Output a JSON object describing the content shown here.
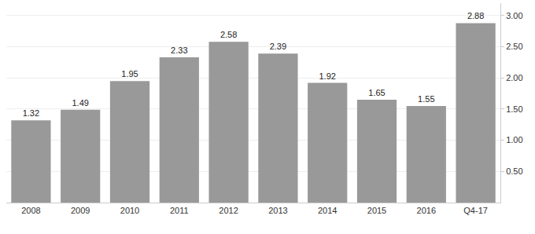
{
  "chart_data": {
    "type": "bar",
    "categories": [
      "2008",
      "2009",
      "2010",
      "2011",
      "2012",
      "2013",
      "2014",
      "2015",
      "2016",
      "Q4-17"
    ],
    "values": [
      1.32,
      1.49,
      1.95,
      2.33,
      2.58,
      2.39,
      1.92,
      1.65,
      1.55,
      2.88
    ],
    "color": "#999999",
    "ylim": [
      0,
      3.2
    ],
    "yticks": [
      {
        "value": 0.5,
        "label": "0.50"
      },
      {
        "value": 1,
        "label": "1.00"
      },
      {
        "value": 1.5,
        "label": "1.50"
      },
      {
        "value": 2,
        "label": "2.00"
      },
      {
        "value": 2.5,
        "label": "2.50"
      },
      {
        "value": 3,
        "label": "3.00"
      }
    ],
    "grid": true,
    "data_labels": true
  }
}
